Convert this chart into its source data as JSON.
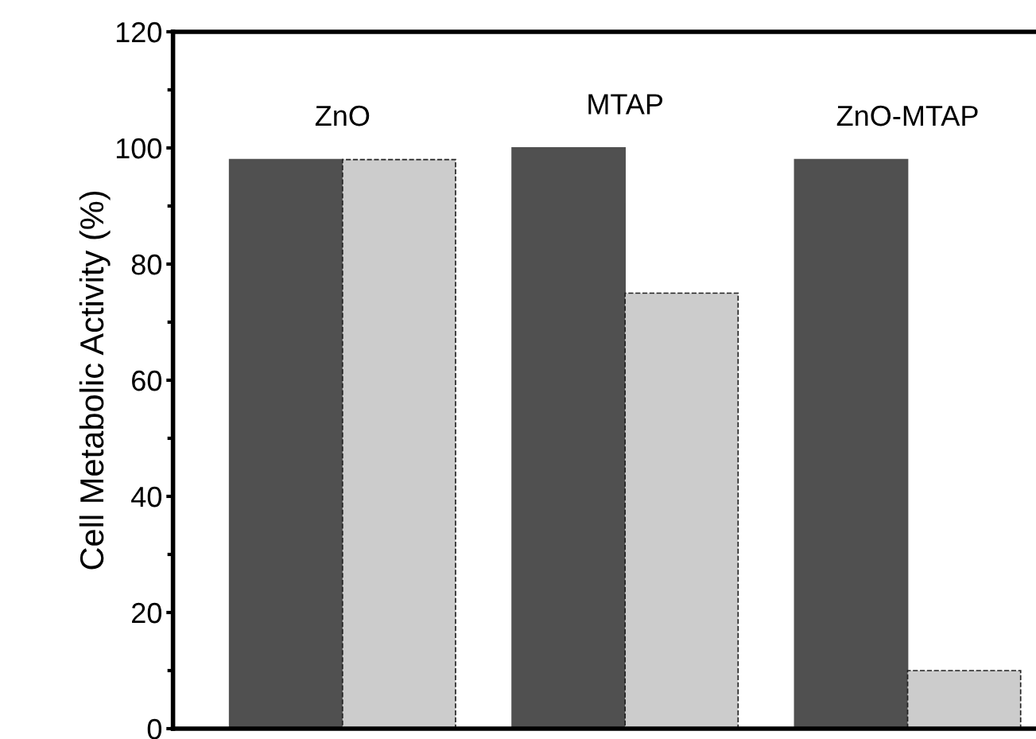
{
  "chart_data": {
    "type": "bar",
    "ylabel": "Cell Metabolic Activity (%)",
    "categories": [
      "ZnO",
      "MTAP",
      "ZnO-MTAP"
    ],
    "series": [
      {
        "color": "#505050",
        "values": [
          98,
          100,
          98
        ]
      },
      {
        "color": "#cccccc",
        "values": [
          98,
          75,
          10
        ],
        "line_style": "dashed"
      }
    ],
    "ylim": [
      0,
      120
    ],
    "yticks": [
      0,
      20,
      40,
      60,
      80,
      100,
      120
    ],
    "grid": false,
    "legend": false
  }
}
